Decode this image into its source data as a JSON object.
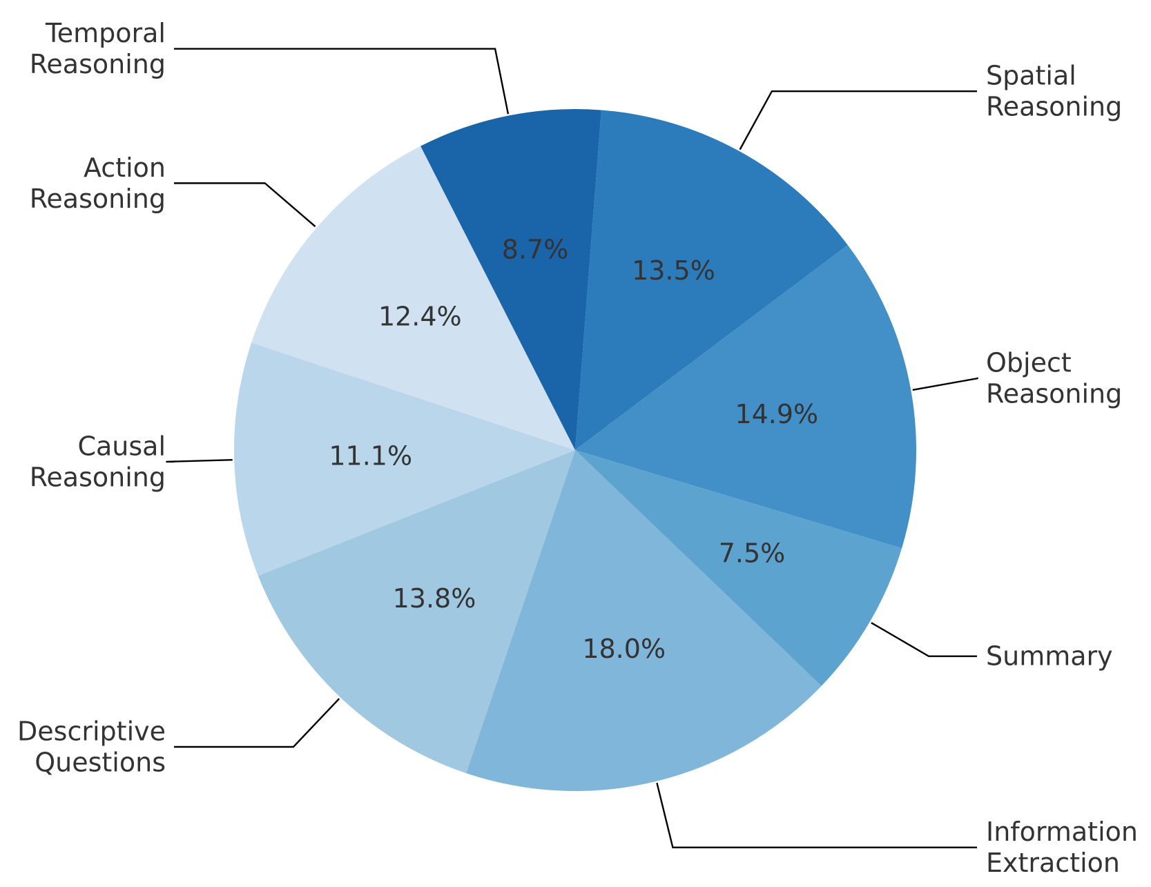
{
  "chart_data": {
    "type": "pie",
    "title": "",
    "slices": [
      {
        "label_lines": [
          "Spatial",
          "Reasoning"
        ],
        "value": 13.5,
        "pct_label": "13.5%",
        "color": "#2c7bba"
      },
      {
        "label_lines": [
          "Object",
          "Reasoning"
        ],
        "value": 14.9,
        "pct_label": "14.9%",
        "color": "#4290c7"
      },
      {
        "label_lines": [
          "Summary"
        ],
        "value": 7.5,
        "pct_label": "7.5%",
        "color": "#5ca3cf"
      },
      {
        "label_lines": [
          "Information",
          "Extraction"
        ],
        "value": 18.0,
        "pct_label": "18.0%",
        "color": "#80b6d9"
      },
      {
        "label_lines": [
          "Descriptive",
          "Questions"
        ],
        "value": 13.8,
        "pct_label": "13.8%",
        "color": "#a1c8e1"
      },
      {
        "label_lines": [
          "Causal",
          "Reasoning"
        ],
        "value": 11.1,
        "pct_label": "11.1%",
        "color": "#bad6ea"
      },
      {
        "label_lines": [
          "Action",
          "Reasoning"
        ],
        "value": 12.4,
        "pct_label": "12.4%",
        "color": "#d0e1f1"
      },
      {
        "label_lines": [
          "Temporal",
          "Reasoning"
        ],
        "value": 8.7,
        "pct_label": "8.7%",
        "color": "#1a64a9"
      }
    ],
    "legend": "none"
  }
}
